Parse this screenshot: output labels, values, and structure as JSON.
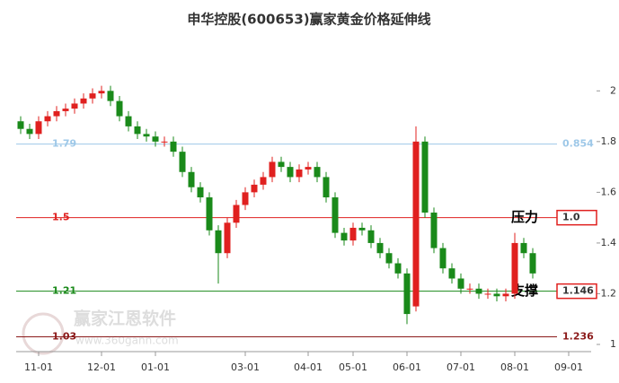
{
  "chart_data": {
    "type": "candlestick",
    "title": "申华控股(600653)赢家黄金价格延伸线",
    "watermark": "赢家江恩软件",
    "watermark_url": "www.360gann.com",
    "open": [
      1.88,
      1.85,
      1.83,
      1.88,
      1.9,
      1.92,
      1.93,
      1.95,
      1.97,
      1.99,
      2.0,
      1.96,
      1.9,
      1.86,
      1.83,
      1.82,
      1.8,
      1.8,
      1.76,
      1.68,
      1.62,
      1.58,
      1.45,
      1.36,
      1.48,
      1.55,
      1.6,
      1.63,
      1.66,
      1.72,
      1.7,
      1.66,
      1.69,
      1.7,
      1.66,
      1.58,
      1.44,
      1.41,
      1.46,
      1.45,
      1.4,
      1.36,
      1.32,
      1.28,
      1.15,
      1.8,
      1.52,
      1.38,
      1.3,
      1.26,
      1.22,
      1.22,
      1.2,
      1.2,
      1.19,
      1.2,
      1.4,
      1.36
    ],
    "high": [
      1.9,
      1.87,
      1.9,
      1.92,
      1.94,
      1.95,
      1.97,
      1.99,
      2.01,
      2.02,
      2.02,
      1.98,
      1.92,
      1.88,
      1.85,
      1.84,
      1.82,
      1.82,
      1.78,
      1.7,
      1.64,
      1.6,
      1.47,
      1.5,
      1.57,
      1.62,
      1.65,
      1.68,
      1.74,
      1.74,
      1.72,
      1.71,
      1.72,
      1.72,
      1.68,
      1.6,
      1.46,
      1.48,
      1.48,
      1.47,
      1.42,
      1.38,
      1.34,
      1.3,
      1.86,
      1.82,
      1.54,
      1.4,
      1.32,
      1.28,
      1.24,
      1.24,
      1.22,
      1.22,
      1.22,
      1.44,
      1.42,
      1.38
    ],
    "low": [
      1.83,
      1.81,
      1.81,
      1.86,
      1.88,
      1.9,
      1.91,
      1.93,
      1.95,
      1.97,
      1.94,
      1.88,
      1.84,
      1.81,
      1.8,
      1.78,
      1.78,
      1.74,
      1.66,
      1.6,
      1.56,
      1.43,
      1.24,
      1.34,
      1.46,
      1.53,
      1.58,
      1.61,
      1.64,
      1.68,
      1.64,
      1.64,
      1.67,
      1.64,
      1.56,
      1.42,
      1.39,
      1.39,
      1.43,
      1.38,
      1.34,
      1.3,
      1.26,
      1.08,
      1.13,
      1.5,
      1.36,
      1.28,
      1.24,
      1.2,
      1.2,
      1.18,
      1.18,
      1.17,
      1.17,
      1.18,
      1.34,
      1.26
    ],
    "close": [
      1.85,
      1.83,
      1.88,
      1.9,
      1.92,
      1.93,
      1.95,
      1.97,
      1.99,
      2.0,
      1.96,
      1.9,
      1.86,
      1.83,
      1.82,
      1.8,
      1.8,
      1.76,
      1.68,
      1.62,
      1.58,
      1.45,
      1.36,
      1.48,
      1.55,
      1.6,
      1.63,
      1.66,
      1.72,
      1.7,
      1.66,
      1.69,
      1.7,
      1.66,
      1.58,
      1.44,
      1.41,
      1.46,
      1.45,
      1.4,
      1.36,
      1.32,
      1.28,
      1.12,
      1.8,
      1.52,
      1.38,
      1.3,
      1.26,
      1.22,
      1.22,
      1.2,
      1.2,
      1.19,
      1.2,
      1.4,
      1.36,
      1.28
    ],
    "up_color": "#e0201f",
    "down_color": "#1a8a1a",
    "ylim": [
      1,
      2.04
    ],
    "yticks": [
      1,
      1.2,
      1.4,
      1.6,
      1.8,
      2
    ],
    "xlim": [
      0,
      64
    ],
    "xticks": [
      {
        "value": 2,
        "label": "11-01"
      },
      {
        "value": 9,
        "label": "12-01"
      },
      {
        "value": 15,
        "label": "01-01"
      },
      {
        "value": 25,
        "label": "03-01"
      },
      {
        "value": 32,
        "label": "04-01"
      },
      {
        "value": 37,
        "label": "05-01"
      },
      {
        "value": 43,
        "label": "06-01"
      },
      {
        "value": 49,
        "label": "07-01"
      },
      {
        "value": 55,
        "label": "08-01"
      },
      {
        "value": 61,
        "label": "09-01"
      }
    ],
    "levels": [
      {
        "value": 1.79,
        "ratio": "0.854",
        "color": "#9ec8e8",
        "boxed": false
      },
      {
        "value": 1.5,
        "ratio": "1.0",
        "color": "#e0201f",
        "boxed": true,
        "note": "压力"
      },
      {
        "value": 1.21,
        "ratio": "1.146",
        "color": "#1a8a1a",
        "boxed": true,
        "note": "支撑"
      },
      {
        "value": 1.03,
        "ratio": "1.236",
        "color": "#8b1a1a",
        "boxed": false
      }
    ]
  }
}
